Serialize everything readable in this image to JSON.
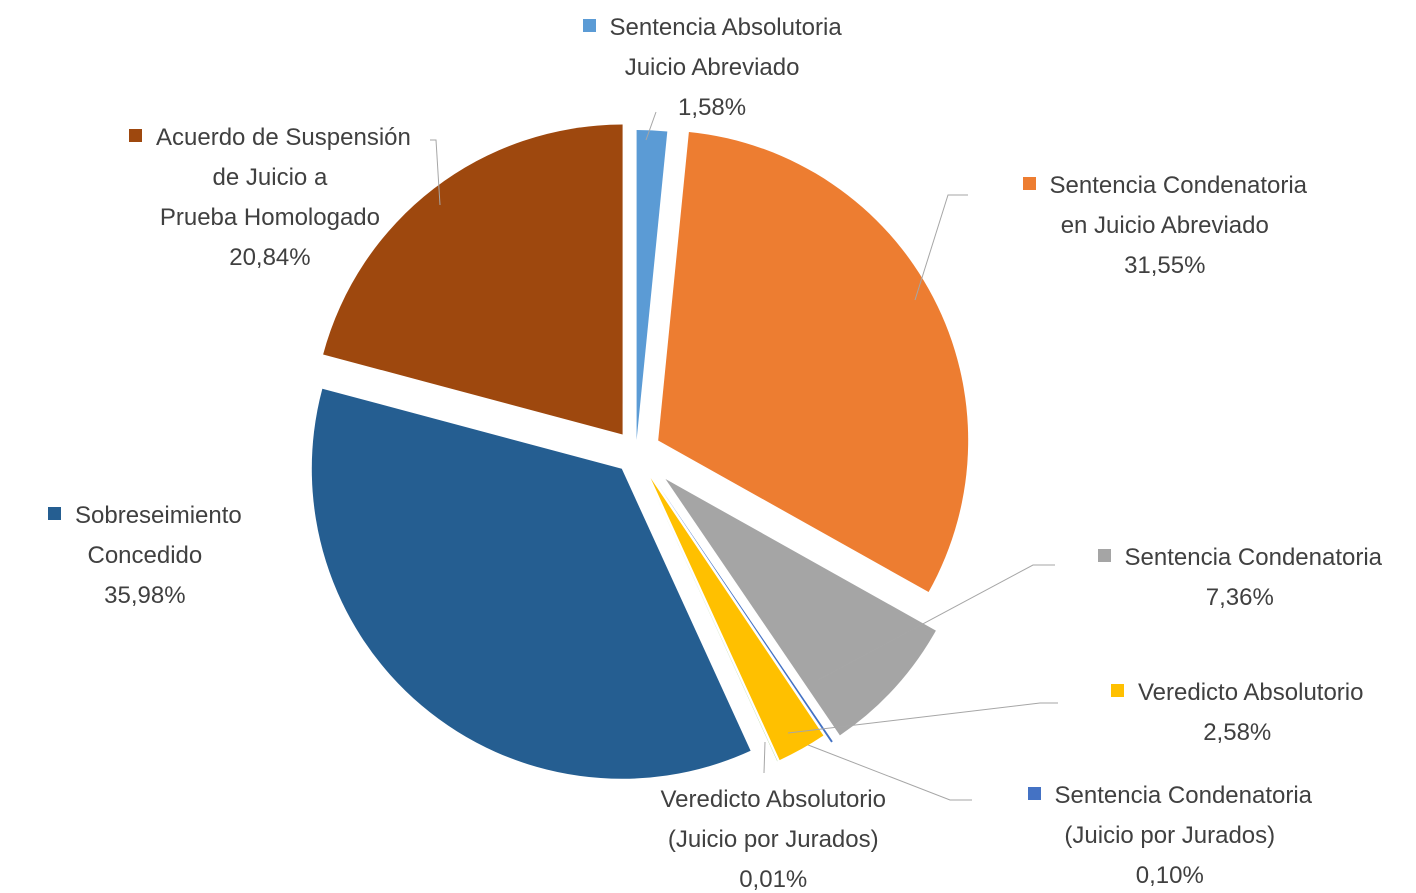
{
  "chart_data": {
    "type": "pie",
    "categories": [
      "Sentencia Absolutoria Juicio Abreviado",
      "Sentencia Condenatoria en Juicio Abreviado",
      "Sentencia Condenatoria",
      "Sentencia Condenatoria (Juicio por Jurados)",
      "Veredicto Absolutorio",
      "Veredicto Absolutorio (Juicio por Jurados)",
      "Sobreseimiento Concedido",
      "Acuerdo de Suspensión de Juicio a Prueba Homologado"
    ],
    "values": [
      1.58,
      31.55,
      7.36,
      0.1,
      2.58,
      0.01,
      35.98,
      20.84
    ],
    "value_labels": [
      "1,58%",
      "31,55%",
      "7,36%",
      "0,10%",
      "2,58%",
      "0,01%",
      "35,98%",
      "20,84%"
    ],
    "colors": [
      "#5b9bd5",
      "#ed7d31",
      "#a5a5a5",
      "#4472c4",
      "#ffc000",
      "#70ad47",
      "#255e91",
      "#9e480e"
    ]
  }
}
